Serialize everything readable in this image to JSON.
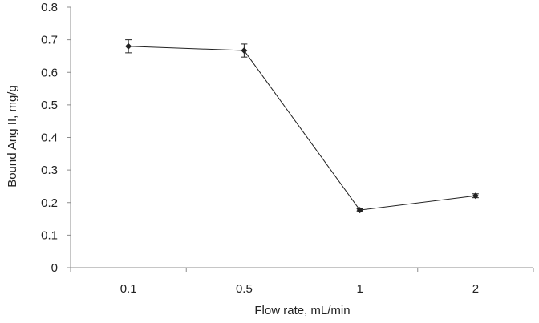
{
  "chart_data": {
    "type": "line",
    "title": "",
    "xlabel": "Flow rate, mL/min",
    "ylabel": "Bound Ang II, mg/g",
    "categories": [
      "0.1",
      "0.5",
      "1",
      "2"
    ],
    "series": [
      {
        "values": [
          0.68,
          0.667,
          0.177,
          0.221
        ],
        "errors": [
          0.02,
          0.02,
          0.004,
          0.006
        ]
      }
    ],
    "yticks": [
      "0",
      "0.1",
      "0.2",
      "0.3",
      "0.4",
      "0.5",
      "0.6",
      "0.7",
      "0.8"
    ],
    "ylim": [
      0,
      0.8
    ],
    "grid": false,
    "legend": "none",
    "colors": {
      "line": "#222222",
      "axis": "#8c8c8c",
      "text": "#222222"
    }
  }
}
